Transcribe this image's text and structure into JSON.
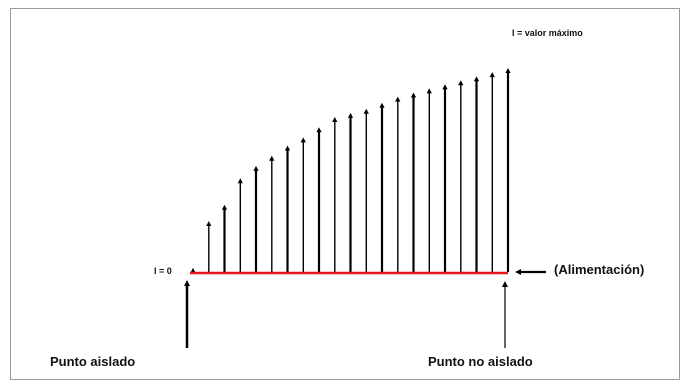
{
  "labels": {
    "max_current": "I = valor máximo",
    "zero_current": "I = 0",
    "feed": "(Alimentación)",
    "isolated_point": "Punto aislado",
    "not_isolated_point": "Punto no aislado"
  },
  "colors": {
    "baseline": "#e8141b",
    "arrows": "#000000",
    "frame": "#9a9a9a"
  },
  "current_levels": [
    0.02,
    0.25,
    0.33,
    0.46,
    0.52,
    0.57,
    0.62,
    0.66,
    0.71,
    0.76,
    0.78,
    0.8,
    0.83,
    0.86,
    0.88,
    0.9,
    0.92,
    0.94,
    0.96,
    0.98,
    1.0
  ]
}
